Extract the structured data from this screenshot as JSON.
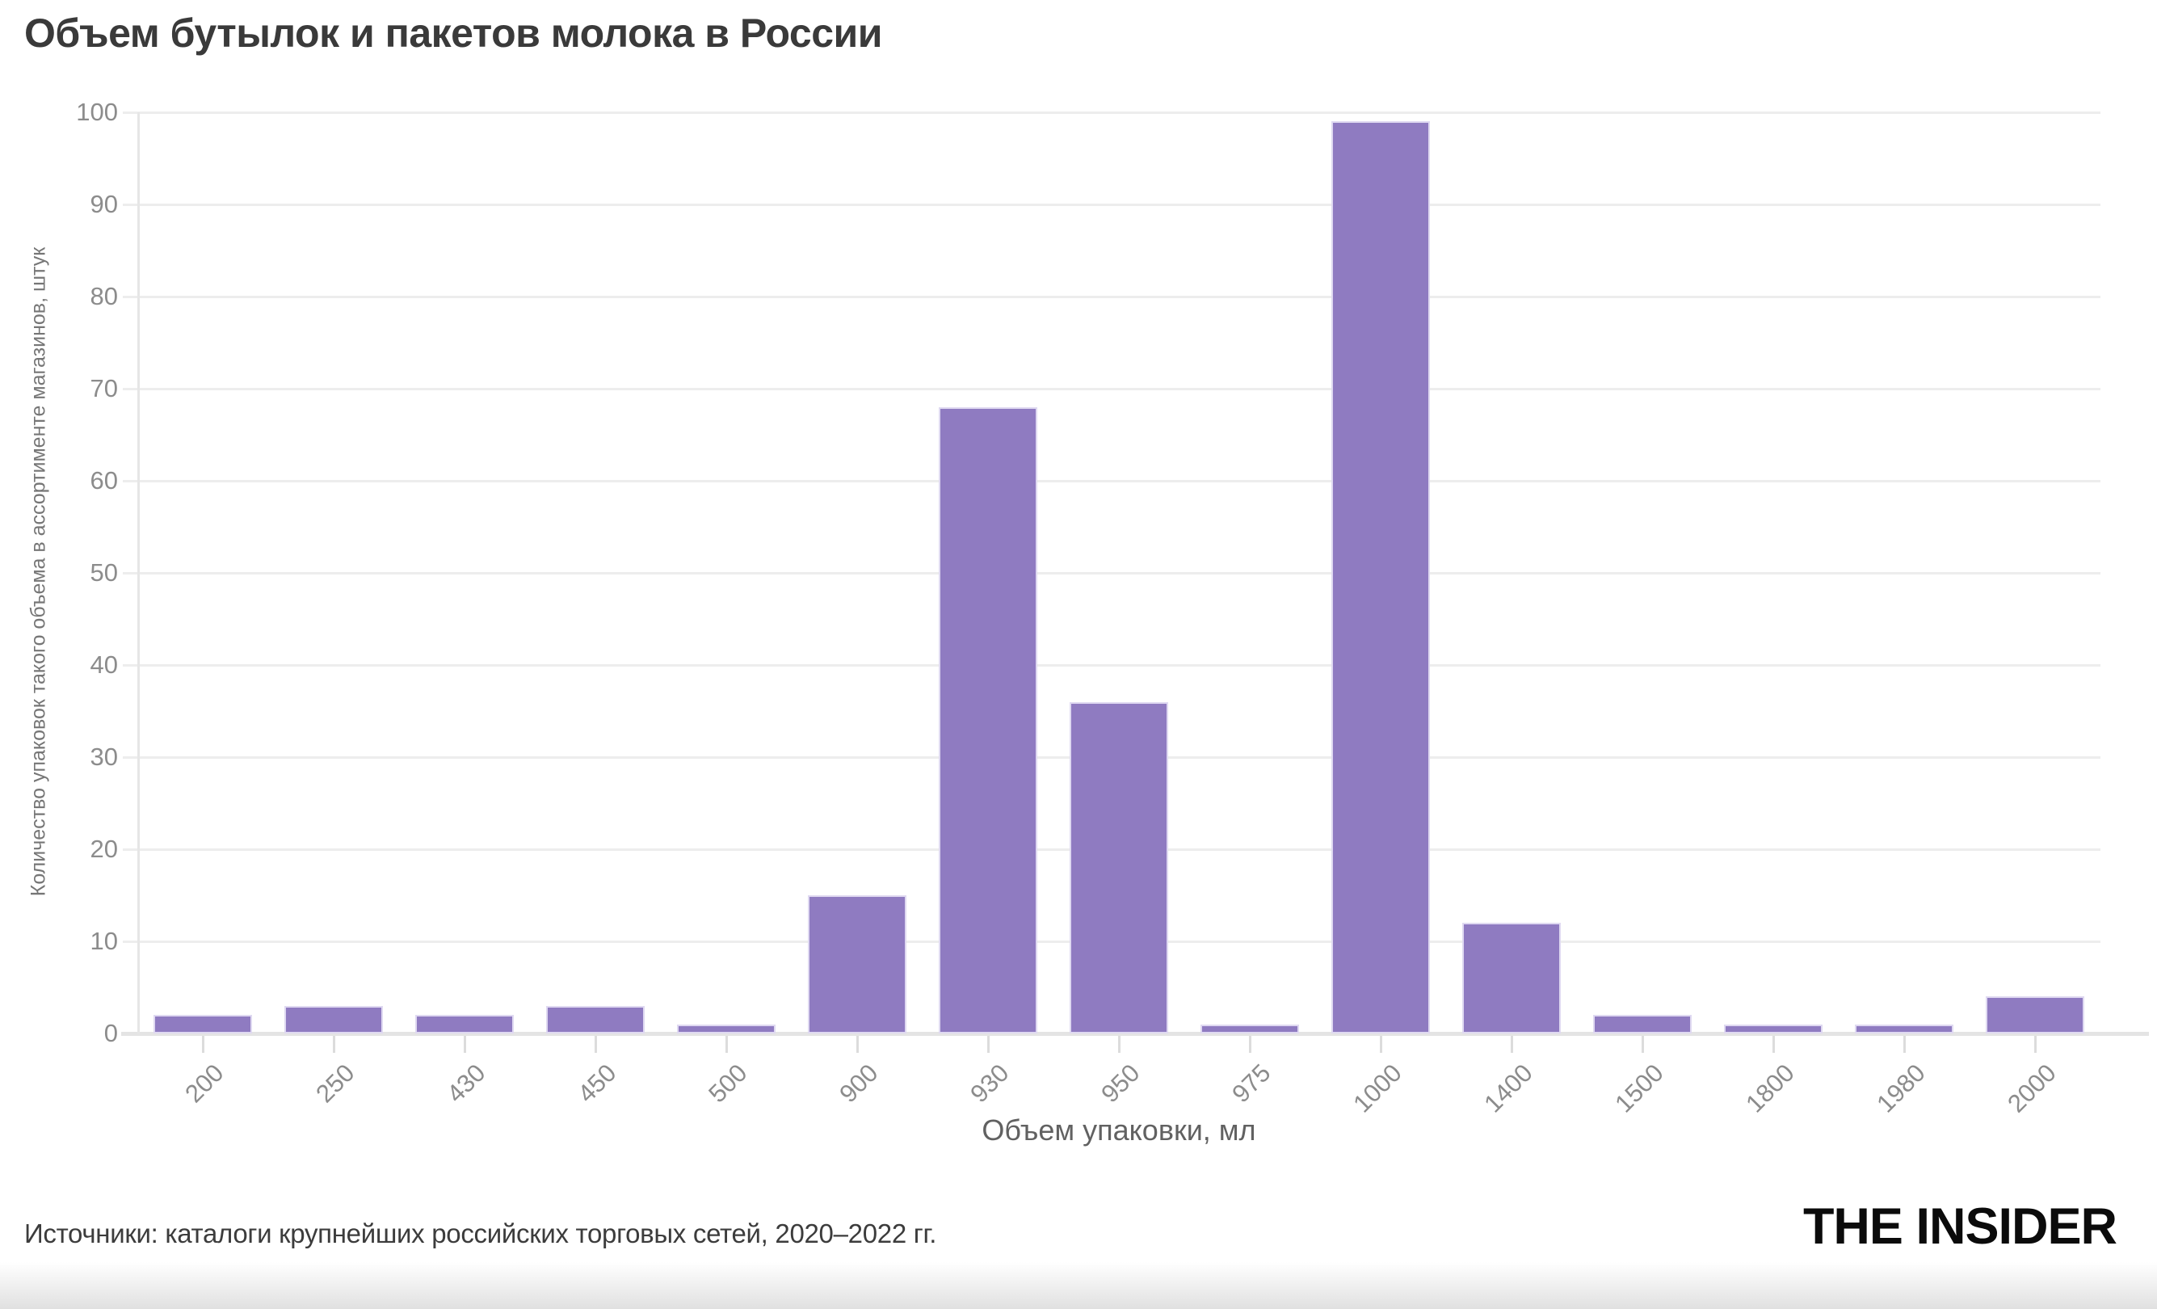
{
  "title": "Объем бутылок и пакетов молока в России",
  "chart_data": {
    "type": "bar",
    "categories": [
      "200",
      "250",
      "430",
      "450",
      "500",
      "900",
      "930",
      "950",
      "975",
      "1000",
      "1400",
      "1500",
      "1800",
      "1980",
      "2000"
    ],
    "values": [
      2,
      3,
      2,
      3,
      1,
      15,
      68,
      36,
      1,
      99,
      12,
      2,
      1,
      1,
      4
    ],
    "title": "Объем бутылок и пакетов молока в России",
    "xlabel": "Объем упаковки, мл",
    "ylabel": "Количество упаковок такого объема в ассортименте магазинов, штук",
    "ylim": [
      0,
      100
    ],
    "ytick_step": 10,
    "grid": true,
    "legend": "none",
    "bar_color": "#8f7bc1"
  },
  "footer": {
    "source": "Источники: каталоги крупнейших российских торговых сетей, 2020–2022 гг.",
    "logo": "THE INSIDER"
  },
  "colors": {
    "background": "#ffffff",
    "bar": "#8f7bc1",
    "bar_edge": "#e4def3",
    "gridline": "#ededed",
    "axis_line": "#e4e4e4",
    "tick_label": "#8c8c8c",
    "title_text": "#3a3a3a",
    "axis_title_text": "#616161",
    "footer_text": "#3c3c3c",
    "logo_text": "#0b0b0b"
  }
}
